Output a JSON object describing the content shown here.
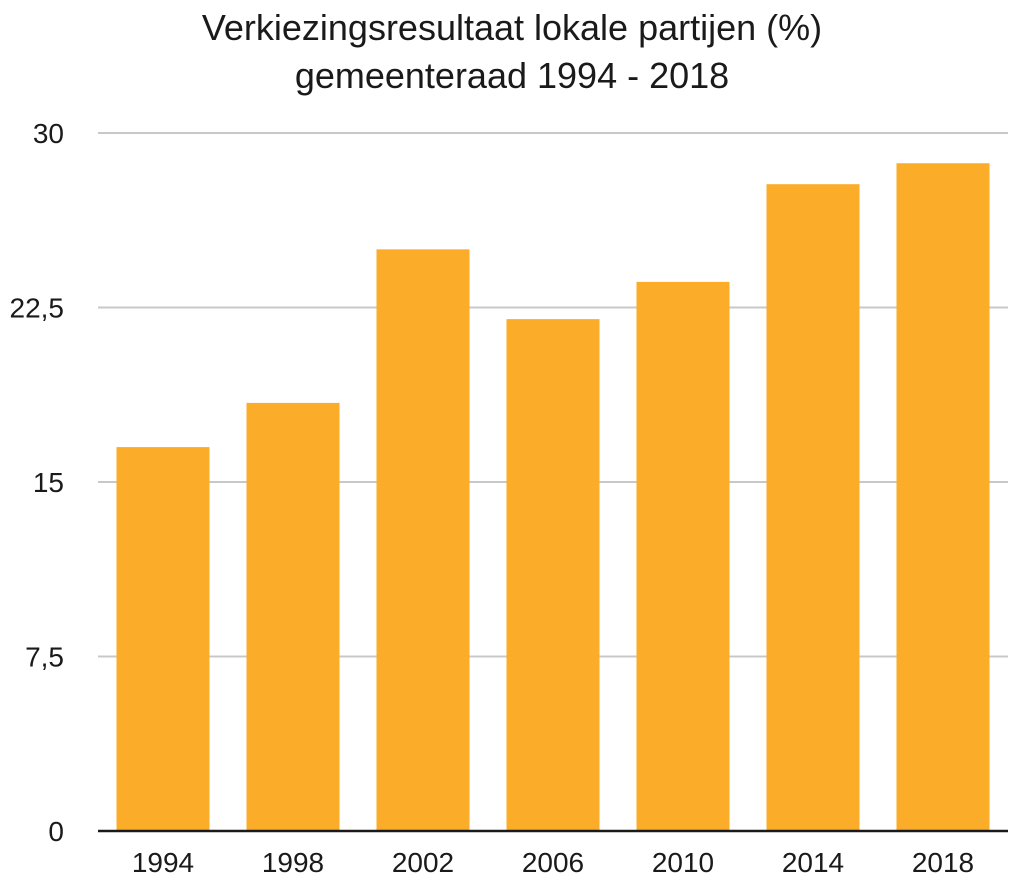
{
  "chart_data": {
    "type": "bar",
    "title": [
      "Verkiezingsresultaat lokale partijen (%)",
      "gemeenteraad 1994 - 2018"
    ],
    "xlabel": "",
    "ylabel": "",
    "categories": [
      "1994",
      "1998",
      "2002",
      "2006",
      "2010",
      "2014",
      "2018"
    ],
    "values": [
      16.5,
      18.4,
      25.0,
      22.0,
      23.6,
      27.8,
      28.7
    ],
    "ylim": [
      0,
      30
    ],
    "yticks": [
      0,
      7.5,
      15,
      22.5,
      30
    ],
    "ytick_labels": [
      "0",
      "7,5",
      "15",
      "22,5",
      "30"
    ],
    "grid": true,
    "legend": "none",
    "bar_color": "#FBAC28"
  }
}
